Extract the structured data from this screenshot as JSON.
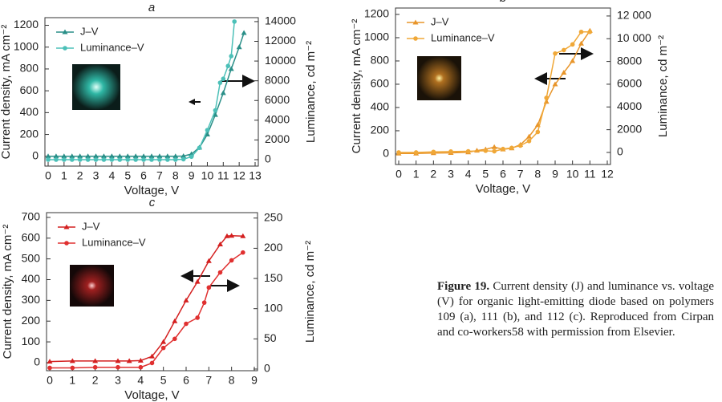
{
  "chart_data": [
    {
      "type": "line",
      "title": "a",
      "xlabel": "Voltage, V",
      "ylabel": "Current density, mA cm⁻²",
      "y2label": "Luminance, cd m⁻²",
      "xlim": [
        0,
        13
      ],
      "xticks": [
        0,
        1,
        2,
        3,
        4,
        5,
        6,
        7,
        8,
        9,
        10,
        11,
        12,
        13
      ],
      "ylim": [
        -90,
        1270
      ],
      "yticks": [
        0,
        200,
        400,
        600,
        800,
        1000,
        1200
      ],
      "y2lim": [
        -650,
        14400
      ],
      "y2ticks": [
        0,
        2000,
        4000,
        6000,
        8000,
        10000,
        12000,
        14000
      ],
      "series": [
        {
          "name": "J–V",
          "color": "#2a8f88",
          "marker": "triangle",
          "x": [
            0,
            0.5,
            1,
            1.5,
            2,
            2.5,
            3,
            3.5,
            4,
            4.5,
            5,
            5.5,
            6,
            6.5,
            7,
            7.5,
            8,
            8.5,
            9,
            9.5,
            10,
            10.5,
            11,
            11.5,
            12,
            12.3
          ],
          "values": [
            0,
            0,
            0,
            0,
            0,
            0,
            0,
            0,
            0,
            0,
            0,
            0,
            0,
            0,
            0,
            0,
            0,
            2,
            20,
            80,
            200,
            380,
            580,
            800,
            1000,
            1130
          ]
        },
        {
          "name": "Luminance–V",
          "color": "#4cc0b8",
          "marker": "circle",
          "axis": "y2",
          "x": [
            0,
            0.5,
            1,
            1.5,
            2,
            2.5,
            3,
            3.5,
            4,
            4.5,
            5,
            5.5,
            6,
            6.5,
            7,
            7.5,
            8,
            8.5,
            9,
            9.5,
            10,
            10.5,
            10.8,
            11,
            11.3,
            11.5,
            11.7
          ],
          "values": [
            0,
            0,
            0,
            0,
            0,
            0,
            0,
            0,
            0,
            0,
            0,
            0,
            0,
            0,
            0,
            0,
            0,
            50,
            300,
            1200,
            3000,
            5000,
            7800,
            8200,
            9500,
            10500,
            14000
          ]
        }
      ]
    },
    {
      "type": "line",
      "title": "b",
      "xlabel": "Voltage, V",
      "ylabel": "Current density, mA cm⁻²",
      "y2label": "Luminance, cd m⁻²",
      "xlim": [
        0,
        12
      ],
      "xticks": [
        0,
        1,
        2,
        3,
        4,
        5,
        6,
        7,
        8,
        9,
        10,
        11,
        12
      ],
      "ylim": [
        -90,
        1255
      ],
      "yticks": [
        0,
        200,
        400,
        600,
        800,
        1000,
        1200
      ],
      "y2lim": [
        -1060,
        12700
      ],
      "y2ticks": [
        0,
        2000,
        4000,
        6000,
        8000,
        {
          "value": 10000,
          "label": "10 000"
        },
        {
          "value": 12000,
          "label": "12 000"
        }
      ],
      "series": [
        {
          "name": "J–V",
          "color": "#e8952a",
          "marker": "triangle",
          "x": [
            0,
            1,
            2,
            3,
            4,
            4.5,
            5,
            5.5,
            6,
            6.5,
            7,
            7.5,
            8,
            8.5,
            9,
            9.5,
            10,
            10.5,
            11
          ],
          "values": [
            5,
            5,
            8,
            10,
            15,
            30,
            40,
            60,
            40,
            50,
            80,
            150,
            250,
            450,
            600,
            700,
            800,
            950,
            1060
          ]
        },
        {
          "name": "Luminance–V",
          "color": "#f0a838",
          "marker": "circle",
          "axis": "y2",
          "x": [
            0,
            1,
            2,
            3,
            4,
            5,
            5.5,
            6,
            6.5,
            7,
            7.5,
            8,
            8.5,
            9,
            9.5,
            10,
            10.5,
            11
          ],
          "values": [
            0,
            0,
            50,
            80,
            100,
            150,
            100,
            300,
            400,
            600,
            1000,
            1800,
            4800,
            8700,
            9000,
            9500,
            10600,
            10600
          ]
        }
      ]
    },
    {
      "type": "line",
      "title": "c",
      "xlabel": "Voltage, V",
      "ylabel": "Current density, mA cm⁻²",
      "y2label": "Luminance, cd m⁻²",
      "xlim": [
        0,
        9
      ],
      "xticks": [
        0,
        1,
        2,
        3,
        4,
        5,
        6,
        7,
        8,
        9
      ],
      "ylim": [
        -39,
        723
      ],
      "yticks": [
        0,
        100,
        200,
        300,
        400,
        500,
        600,
        700
      ],
      "y2lim": [
        -2.7,
        259
      ],
      "y2ticks": [
        0,
        50,
        100,
        150,
        200,
        250
      ],
      "series": [
        {
          "name": "J–V",
          "color": "#d42020",
          "marker": "triangle",
          "x": [
            0,
            1,
            2,
            3,
            3.5,
            4,
            4.5,
            5,
            5.5,
            6,
            6.5,
            7,
            7.5,
            7.8,
            8,
            8.5
          ],
          "values": [
            5,
            8,
            8,
            8,
            8,
            10,
            30,
            100,
            200,
            300,
            390,
            490,
            570,
            610,
            612,
            610
          ]
        },
        {
          "name": "Luminance–V",
          "color": "#e03030",
          "marker": "circle",
          "axis": "y2",
          "x": [
            0,
            1,
            2,
            3,
            4,
            4.5,
            5,
            5.5,
            6,
            6.5,
            6.8,
            7,
            7.5,
            8,
            8.5
          ],
          "values": [
            2,
            2,
            3,
            3,
            3,
            10,
            35,
            50,
            75,
            85,
            110,
            135,
            160,
            180,
            193
          ]
        }
      ]
    }
  ],
  "caption": {
    "label": "Figure 19.",
    "text": "Current density (J) and luminance vs. voltage (V) for organic light-emitting diode based on polymers 109 (a), 111 (b), and 112 (c). Reproduced from Cirpan and co-workers58 with permission from Elsevier."
  }
}
